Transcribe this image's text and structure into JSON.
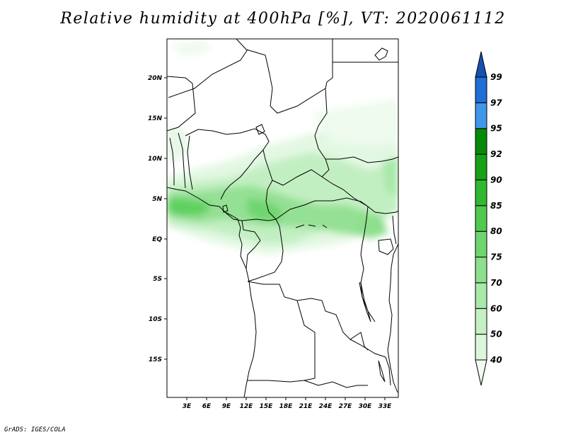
{
  "title": "Relative humidity at 400hPa [%], VT: 2020061112",
  "footer": "GrADS: IGES/COLA",
  "map": {
    "lat_labels": [
      "20N",
      "15N",
      "10N",
      "5N",
      "EQ",
      "5S",
      "10S",
      "15S"
    ],
    "lon_labels": [
      "3E",
      "6E",
      "9E",
      "12E",
      "15E",
      "18E",
      "21E",
      "24E",
      "27E",
      "30E",
      "33E"
    ],
    "lon_range": [
      0,
      35
    ],
    "lat_range": [
      -20,
      24
    ]
  },
  "colorbar": {
    "levels": [
      "40",
      "50",
      "60",
      "70",
      "75",
      "80",
      "85",
      "90",
      "92",
      "95",
      "97",
      "99"
    ],
    "colors": [
      "#f0fcf0",
      "#dcf6dc",
      "#c4f0c4",
      "#a8e8a8",
      "#8cdf8c",
      "#6fd56f",
      "#4fc94f",
      "#30b830",
      "#16a116",
      "#078a07",
      "#3f97e8",
      "#1f6fd4",
      "#1651b0"
    ]
  }
}
